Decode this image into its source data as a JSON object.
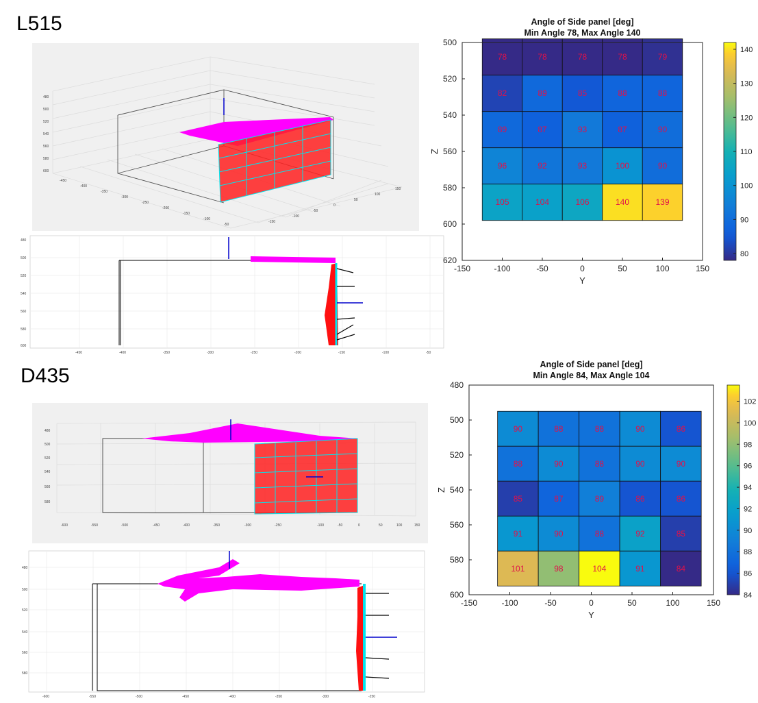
{
  "sections": [
    {
      "label": "L515"
    },
    {
      "label": "D435"
    }
  ],
  "chart_data": [
    {
      "type": "heatmap",
      "title": "Angle of Side panel [deg]",
      "subtitle": "Min Angle 78, Max Angle 140",
      "xlabel": "Y",
      "ylabel": "Z",
      "xlim": [
        -150,
        150
      ],
      "ylim": [
        620,
        500
      ],
      "xticks": [
        "-150",
        "-100",
        "-50",
        "0",
        "50",
        "100",
        "150"
      ],
      "yticks": [
        "500",
        "520",
        "540",
        "560",
        "580",
        "600",
        "620"
      ],
      "cell_x": [
        -100,
        -50,
        0,
        50,
        100
      ],
      "cell_y": [
        508,
        528,
        548,
        568,
        588
      ],
      "values": [
        [
          78,
          78,
          78,
          78,
          79
        ],
        [
          82,
          89,
          85,
          88,
          88
        ],
        [
          89,
          87,
          93,
          87,
          90
        ],
        [
          96,
          92,
          93,
          100,
          90
        ],
        [
          105,
          104,
          106,
          140,
          139
        ]
      ],
      "colorbar": {
        "min": 78,
        "max": 142,
        "ticks": [
          "80",
          "90",
          "100",
          "110",
          "120",
          "130",
          "140"
        ]
      }
    },
    {
      "type": "heatmap",
      "title": "Angle of Side panel [deg]",
      "subtitle": "Min Angle 84, Max Angle 104",
      "xlabel": "Y",
      "ylabel": "Z",
      "xlim": [
        -150,
        150
      ],
      "ylim": [
        600,
        480
      ],
      "xticks": [
        "-150",
        "-100",
        "-50",
        "0",
        "50",
        "100",
        "150"
      ],
      "yticks": [
        "480",
        "500",
        "520",
        "540",
        "560",
        "580",
        "600"
      ],
      "cell_x": [
        -90,
        -40,
        10,
        60,
        110
      ],
      "cell_y": [
        505,
        525,
        545,
        565,
        585
      ],
      "values": [
        [
          90,
          88,
          88,
          90,
          86
        ],
        [
          88,
          90,
          88,
          90,
          90
        ],
        [
          85,
          87,
          89,
          86,
          86
        ],
        [
          91,
          90,
          88,
          92,
          85
        ],
        [
          101,
          98,
          104,
          91,
          84
        ]
      ],
      "colorbar": {
        "min": 84,
        "max": 103.5,
        "ticks": [
          "84",
          "86",
          "88",
          "90",
          "92",
          "94",
          "96",
          "98",
          "100",
          "102"
        ]
      }
    }
  ],
  "colors": {
    "point_cloud_top": "#ff00ff",
    "point_cloud_side": "#ff0000",
    "grid_lines": "#00e5ee",
    "normal_vectors": "#000000",
    "highlight_vector": "#0000cc",
    "cell_label": "#e0114a"
  }
}
